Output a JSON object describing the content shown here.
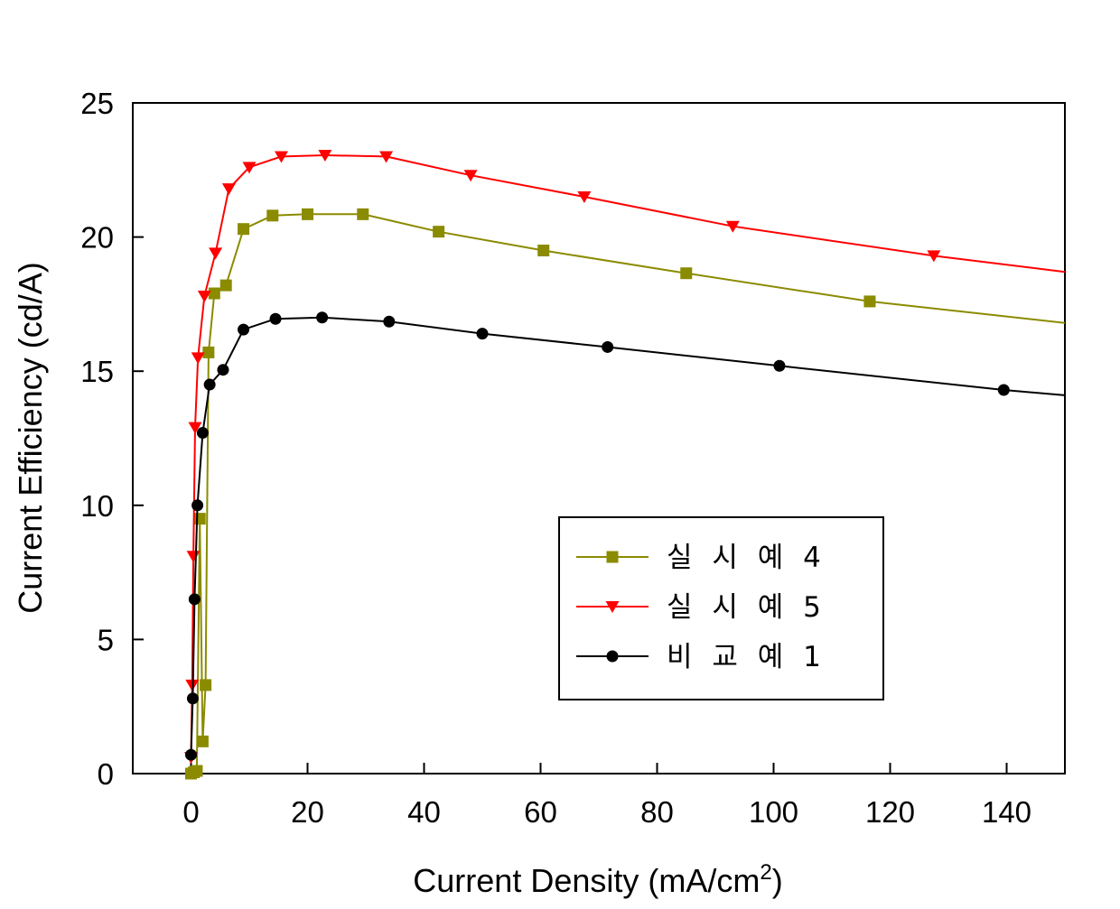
{
  "chart_data": {
    "type": "line",
    "xlabel": "Current Density (mA/cm",
    "xlabel_sup": "2",
    "xlabel_close": ")",
    "ylabel": "Current Efficiency (cd/A)",
    "xlim": [
      -10,
      150
    ],
    "ylim": [
      0,
      25
    ],
    "xticks": [
      0,
      20,
      40,
      60,
      80,
      100,
      120,
      140
    ],
    "yticks": [
      0,
      5,
      10,
      15,
      20,
      25
    ],
    "legend_position": "center-right",
    "series": [
      {
        "name": "실 시 예 4",
        "color": "#8b8b00",
        "marker": "square",
        "x": [
          0.0,
          0.5,
          1.0,
          1.5,
          2.0,
          2.5,
          3.0,
          4.0,
          6.0,
          9.0,
          14.0,
          20.0,
          29.5,
          42.5,
          60.5,
          85.0,
          116.5,
          150
        ],
        "y": [
          0.0,
          0.05,
          0.1,
          9.5,
          1.2,
          3.3,
          15.7,
          17.9,
          18.2,
          20.3,
          20.8,
          20.85,
          20.85,
          20.2,
          19.5,
          18.65,
          17.6,
          16.8
        ]
      },
      {
        "name": "실 시 예 5",
        "color": "#ff0000",
        "marker": "triangle-down",
        "x": [
          0.0,
          0.2,
          0.4,
          0.7,
          1.2,
          2.3,
          4.2,
          6.5,
          10.0,
          15.5,
          23.0,
          33.5,
          48.0,
          67.5,
          93.0,
          127.5,
          150
        ],
        "y": [
          0.6,
          3.3,
          8.1,
          12.9,
          15.5,
          17.8,
          19.4,
          21.8,
          22.6,
          23.0,
          23.05,
          23.0,
          22.3,
          21.5,
          20.4,
          19.3,
          18.7
        ]
      },
      {
        "name": "비 교  예 1",
        "color": "#000000",
        "marker": "circle",
        "x": [
          0.0,
          0.3,
          0.6,
          1.1,
          2.0,
          3.2,
          5.5,
          9.0,
          14.5,
          22.5,
          34.0,
          50.0,
          71.5,
          101.0,
          139.5,
          150
        ],
        "y": [
          0.7,
          2.8,
          6.5,
          10.0,
          12.7,
          14.5,
          15.05,
          16.55,
          16.95,
          17.0,
          16.85,
          16.4,
          15.9,
          15.2,
          14.3,
          14.1
        ]
      }
    ]
  }
}
